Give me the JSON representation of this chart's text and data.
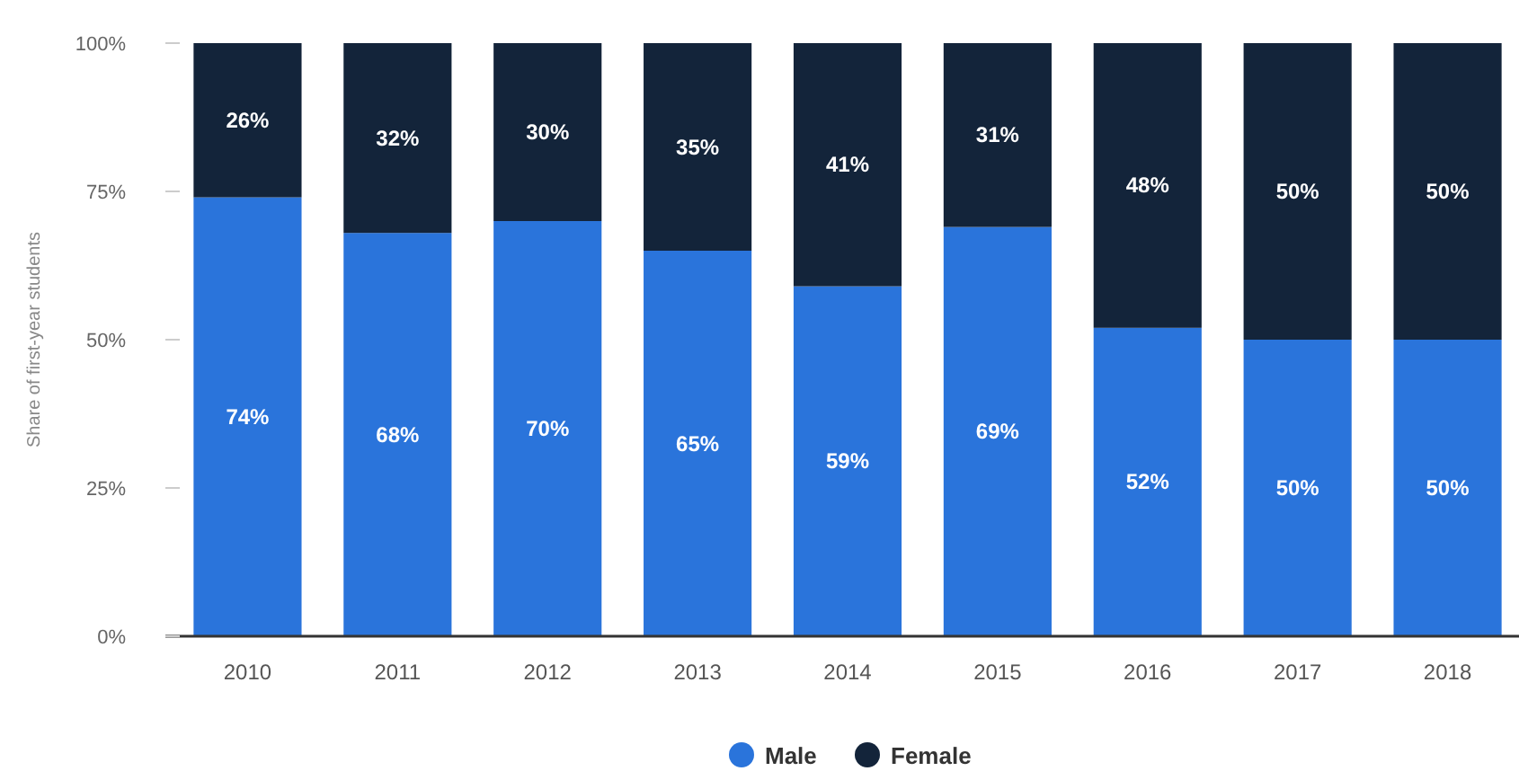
{
  "chart_data": {
    "type": "bar",
    "stacked": true,
    "ylabel": "Share of first-year students",
    "categories": [
      "2010",
      "2011",
      "2012",
      "2013",
      "2014",
      "2015",
      "2016",
      "2017",
      "2018"
    ],
    "series": [
      {
        "name": "Male",
        "color": "#2a74db",
        "values": [
          74,
          68,
          70,
          65,
          59,
          69,
          52,
          50,
          50
        ],
        "value_labels": [
          "74%",
          "68%",
          "70%",
          "65%",
          "59%",
          "69%",
          "52%",
          "50%",
          "50%"
        ]
      },
      {
        "name": "Female",
        "color": "#13243a",
        "values": [
          26,
          32,
          30,
          35,
          41,
          31,
          48,
          50,
          50
        ],
        "value_labels": [
          "26%",
          "32%",
          "30%",
          "35%",
          "41%",
          "31%",
          "48%",
          "50%",
          "50%"
        ]
      }
    ],
    "ylim": [
      0,
      100
    ],
    "yticks": [
      {
        "value": 0,
        "label": "0%"
      },
      {
        "value": 25,
        "label": "25%"
      },
      {
        "value": 50,
        "label": "50%"
      },
      {
        "value": 75,
        "label": "75%"
      },
      {
        "value": 100,
        "label": "100%"
      }
    ],
    "grid": false,
    "legend": "bottom"
  }
}
